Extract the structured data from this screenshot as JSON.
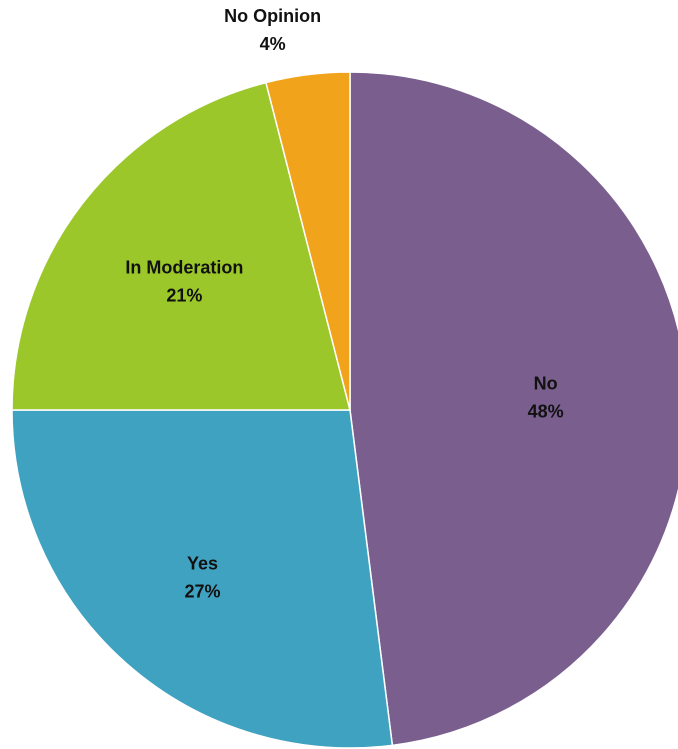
{
  "chart_data": {
    "type": "pie",
    "categories": [
      "No",
      "Yes",
      "In Moderation",
      "No Opinion"
    ],
    "values": [
      48,
      27,
      21,
      4
    ],
    "labels": [
      "48%",
      "27%",
      "21%",
      "4%"
    ],
    "colors": [
      "#7a5f8e",
      "#40a2c1",
      "#9bc72b",
      "#f2a31c"
    ],
    "start": "12 o'clock",
    "direction": "clockwise"
  }
}
